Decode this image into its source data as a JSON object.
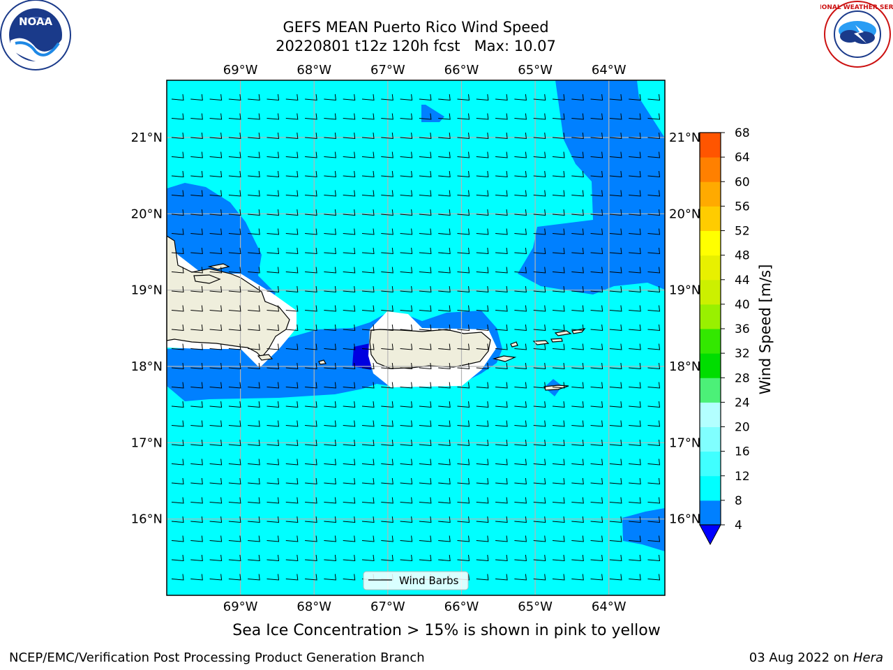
{
  "title": {
    "line1": "GEFS MEAN Puerto Rico Wind Speed",
    "line2": "20220801 t12z 120h fcst   Max: 10.07"
  },
  "map": {
    "lon_labels": [
      "69°W",
      "68°W",
      "67°W",
      "66°W",
      "65°W",
      "64°W"
    ],
    "lat_labels": [
      "21°N",
      "20°N",
      "19°N",
      "18°N",
      "17°N",
      "16°N"
    ],
    "lon_values": [
      -69,
      -68,
      -67,
      -66,
      -65,
      -64
    ],
    "lat_values": [
      21,
      20,
      19,
      18,
      17,
      16
    ],
    "extent": {
      "lon_min": -70.0,
      "lon_max": -63.24,
      "lat_min": 15.0,
      "lat_max": 21.75
    },
    "ocean_color": "#00ffff",
    "wind_4_8_color": "#0080ff",
    "wind_lt4_color": "#0000e0",
    "land_color": "#efeedc",
    "legend_label": "Wind Barbs"
  },
  "colorbar": {
    "label": "Wind Speed [m/s]",
    "ticks": [
      "4",
      "8",
      "12",
      "16",
      "20",
      "24",
      "28",
      "32",
      "36",
      "40",
      "44",
      "48",
      "52",
      "56",
      "60",
      "64",
      "68"
    ],
    "under_color": "#0000ff",
    "colors": [
      "#0080ff",
      "#00ffff",
      "#40ffff",
      "#80ffff",
      "#b3ffff",
      "#4cf078",
      "#00dd00",
      "#33e800",
      "#99f000",
      "#ccf000",
      "#e8f000",
      "#ffff00",
      "#ffcc00",
      "#ffaa00",
      "#ff8000",
      "#ff5500",
      "#ff2a00",
      "#ff0000"
    ]
  },
  "subcaption": "Sea Ice Concentration > 15% is shown in pink to yellow",
  "footer": {
    "left": "NCEP/EMC/Verification Post Processing Product Generation Branch",
    "right_date": "03 Aug 2022 on ",
    "right_host": "Hera"
  },
  "logos": {
    "left_text": "NOAA",
    "right_text": "NATIONAL WEATHER SERVICE"
  }
}
